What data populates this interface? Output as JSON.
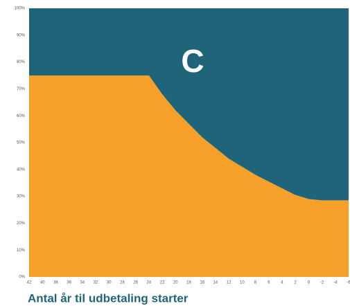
{
  "chart_data": {
    "type": "stacked-area",
    "annotation": "C",
    "x_label": "Antal år til udbetaling starter",
    "categories": [
      "42",
      "40",
      "38",
      "36",
      "34",
      "32",
      "30",
      "28",
      "26",
      "24",
      "22",
      "20",
      "18",
      "16",
      "14",
      "12",
      "10",
      "8",
      "6",
      "4",
      "2",
      "0",
      "-2",
      "-4",
      "-6"
    ],
    "series": [
      {
        "color": "#f5a02a",
        "values": [
          75,
          75,
          75,
          75,
          75,
          75,
          75,
          75,
          75,
          75,
          68,
          62,
          57,
          52,
          48,
          44,
          41,
          38,
          35.5,
          33,
          30.5,
          29,
          28.5,
          28.5,
          28.5
        ]
      },
      {
        "color": "#1f6479",
        "values": [
          25,
          25,
          25,
          25,
          25,
          25,
          25,
          25,
          25,
          25,
          32,
          38,
          43,
          48,
          52,
          56,
          59,
          62,
          64.5,
          67,
          69.5,
          71,
          71.5,
          71.5,
          71.5
        ]
      }
    ],
    "ylim": [
      0,
      100
    ],
    "yticks": [
      {
        "value": 0,
        "label": "0%"
      },
      {
        "value": 10,
        "label": "10%"
      },
      {
        "value": 20,
        "label": "20%"
      },
      {
        "value": 30,
        "label": "30%"
      },
      {
        "value": 40,
        "label": "40%"
      },
      {
        "value": 50,
        "label": "50%"
      },
      {
        "value": 60,
        "label": "60%"
      },
      {
        "value": 70,
        "label": "70%"
      },
      {
        "value": 80,
        "label": "80%"
      },
      {
        "value": 90,
        "label": "90%"
      },
      {
        "value": 100,
        "label": "100%"
      }
    ]
  }
}
